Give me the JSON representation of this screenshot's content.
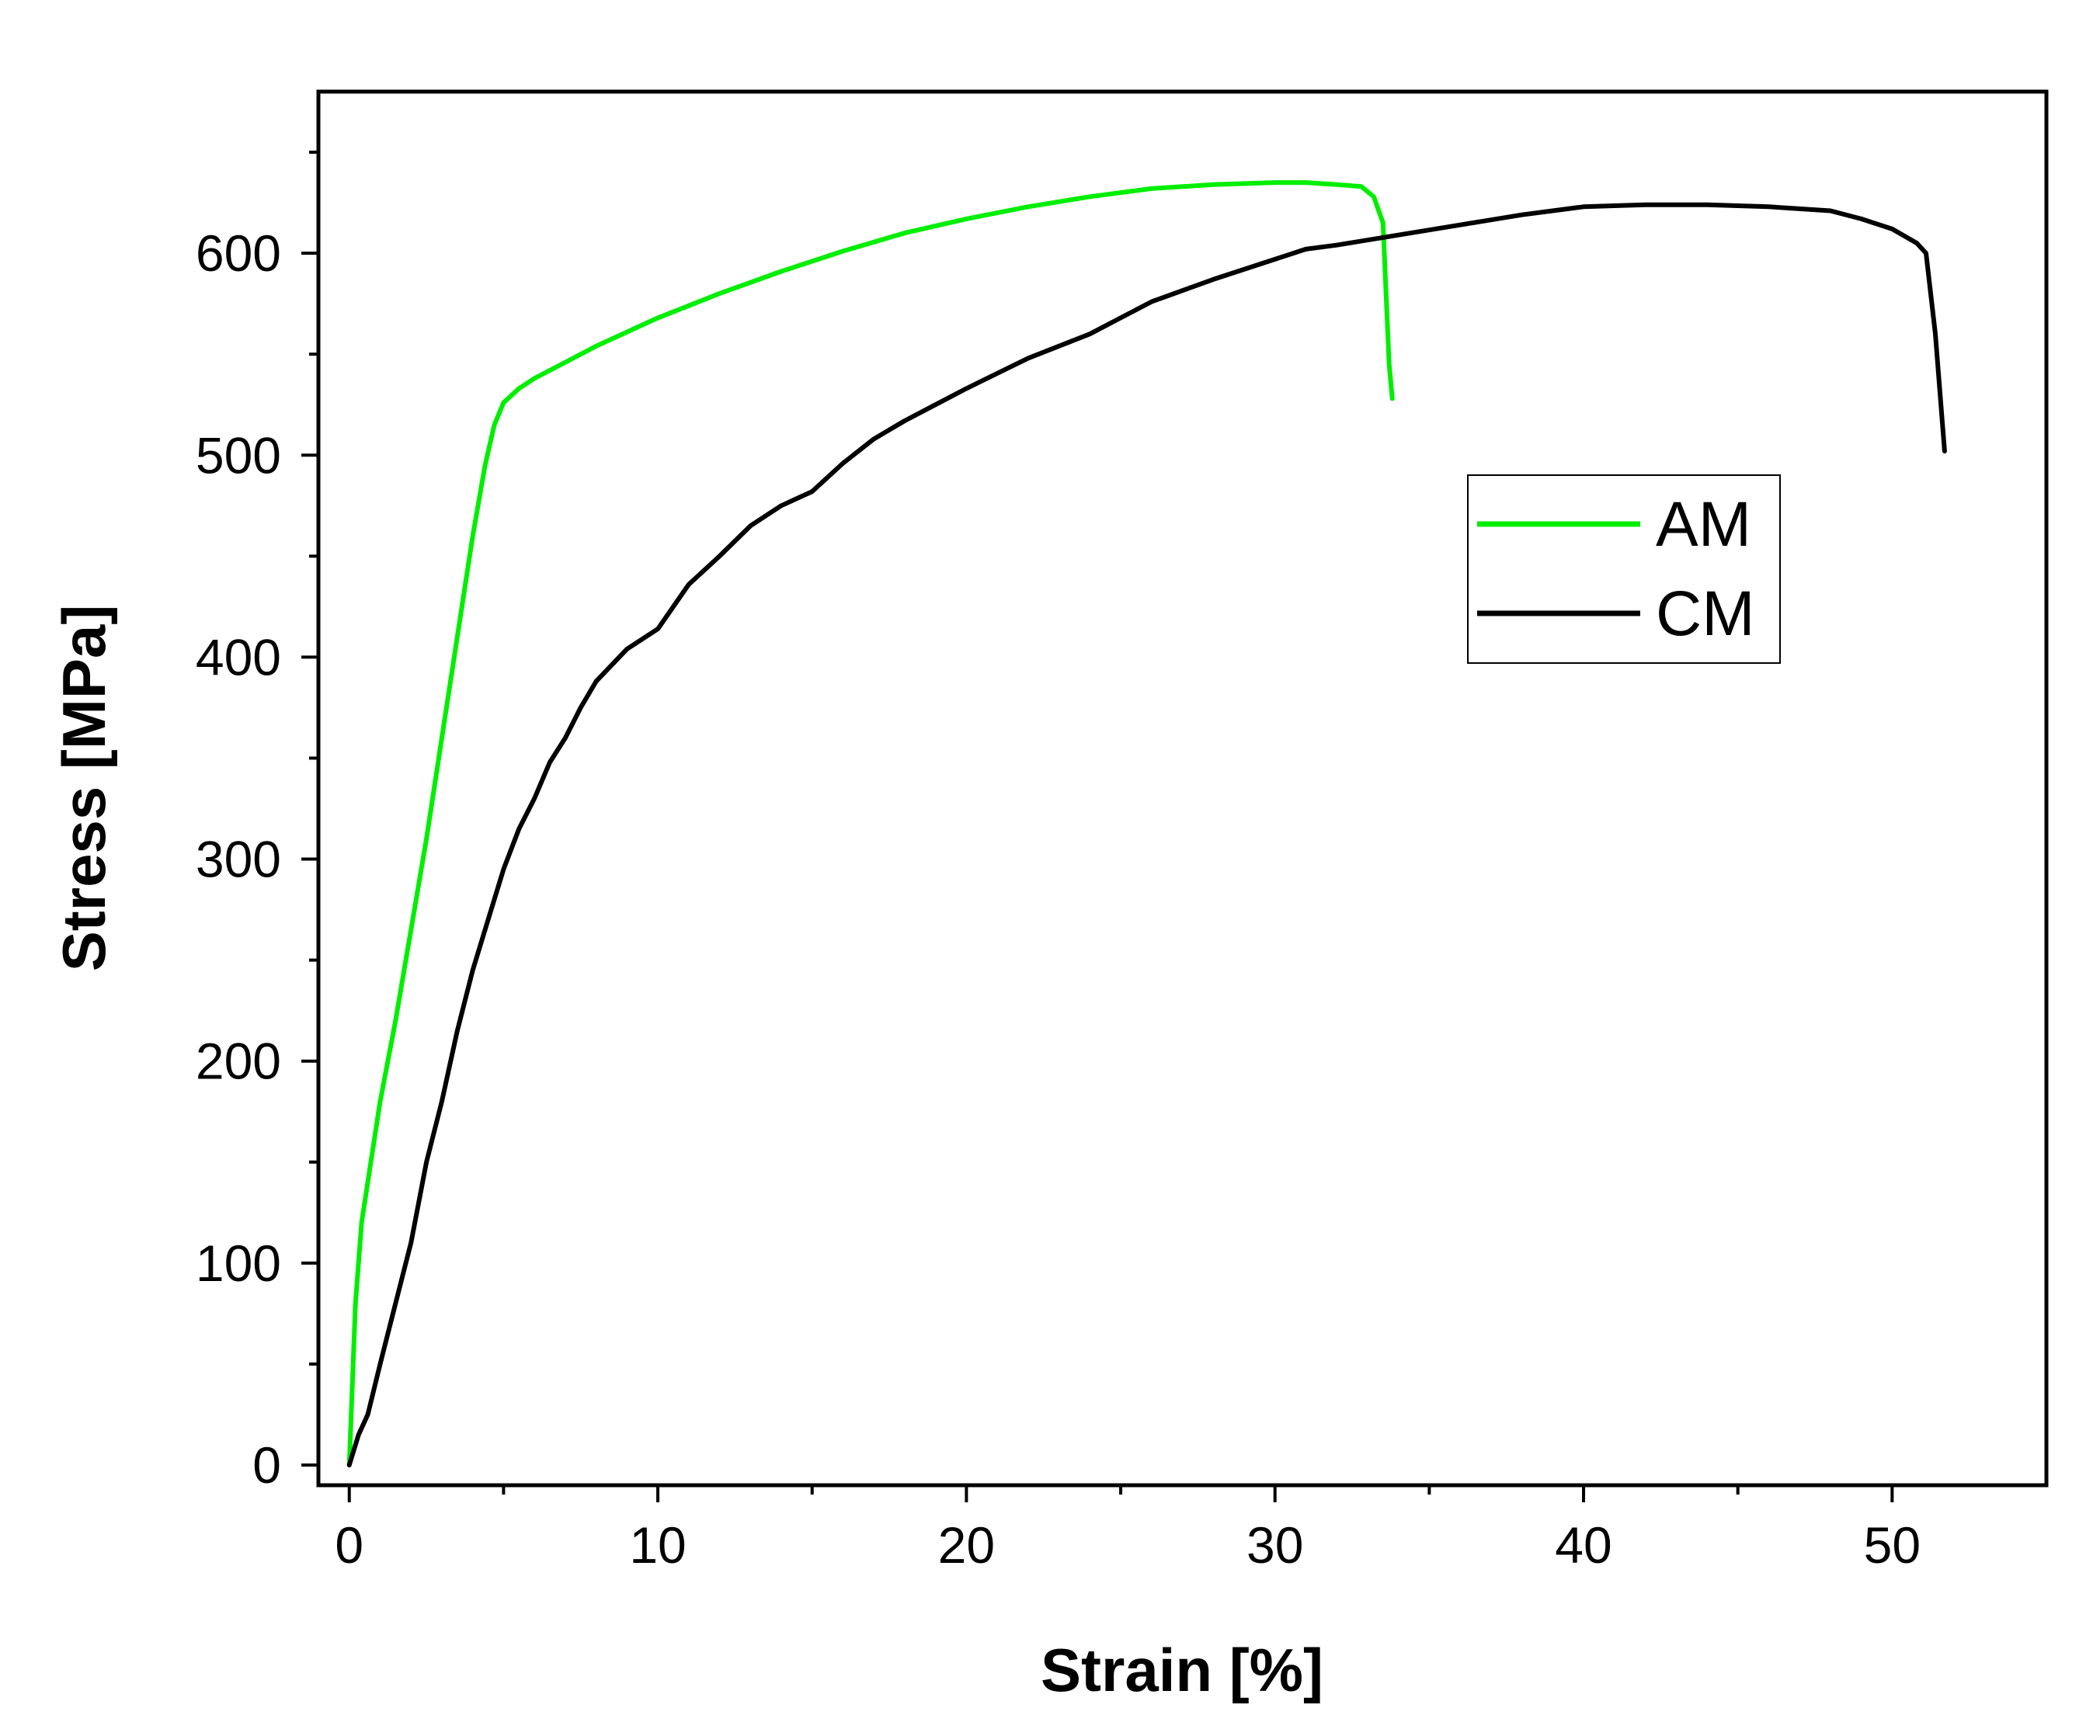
{
  "chart_data": {
    "type": "line",
    "title": "",
    "xlabel": "Strain [%]",
    "ylabel": "Stress [MPa]",
    "xlim": [
      -1,
      55
    ],
    "ylim": [
      -10,
      680
    ],
    "x_ticks": [
      0,
      10,
      20,
      30,
      40,
      50
    ],
    "x_tick_labels": [
      "0",
      "10",
      "20",
      "30",
      "40",
      "50"
    ],
    "y_ticks": [
      0,
      100,
      200,
      300,
      400,
      500,
      600
    ],
    "y_tick_labels": [
      "0",
      "100",
      "200",
      "300",
      "400",
      "500",
      "600"
    ],
    "grid": false,
    "legend_position": "top-right",
    "series": [
      {
        "name": "AM",
        "color": "#00ee00",
        "points": [
          [
            0,
            0
          ],
          [
            0.1,
            40
          ],
          [
            0.2,
            80
          ],
          [
            0.4,
            120
          ],
          [
            0.7,
            150
          ],
          [
            1.0,
            180
          ],
          [
            1.5,
            220
          ],
          [
            2.0,
            265
          ],
          [
            2.5,
            310
          ],
          [
            3.0,
            360
          ],
          [
            3.5,
            410
          ],
          [
            4.0,
            460
          ],
          [
            4.4,
            495
          ],
          [
            4.7,
            515
          ],
          [
            5.0,
            526
          ],
          [
            5.5,
            533
          ],
          [
            6,
            538
          ],
          [
            7,
            546
          ],
          [
            8,
            554
          ],
          [
            9,
            561
          ],
          [
            10,
            568
          ],
          [
            12,
            580
          ],
          [
            14,
            591
          ],
          [
            16,
            601
          ],
          [
            18,
            610
          ],
          [
            20,
            617
          ],
          [
            22,
            623
          ],
          [
            24,
            628
          ],
          [
            26,
            632
          ],
          [
            28,
            634
          ],
          [
            30,
            635
          ],
          [
            31,
            635
          ],
          [
            32,
            634
          ],
          [
            32.8,
            633
          ],
          [
            33.2,
            628
          ],
          [
            33.5,
            615
          ],
          [
            33.6,
            580
          ],
          [
            33.7,
            545
          ],
          [
            33.8,
            528
          ]
        ]
      },
      {
        "name": "CM",
        "color": "#000000",
        "points": [
          [
            0,
            0
          ],
          [
            0.3,
            15
          ],
          [
            0.6,
            25
          ],
          [
            1.0,
            50
          ],
          [
            1.5,
            80
          ],
          [
            2.0,
            110
          ],
          [
            2.5,
            150
          ],
          [
            3.0,
            180
          ],
          [
            3.5,
            215
          ],
          [
            4.0,
            245
          ],
          [
            4.5,
            270
          ],
          [
            5.0,
            295
          ],
          [
            5.5,
            315
          ],
          [
            6.0,
            330
          ],
          [
            6.5,
            348
          ],
          [
            7.0,
            360
          ],
          [
            7.5,
            375
          ],
          [
            8.0,
            388
          ],
          [
            9.0,
            404
          ],
          [
            10.0,
            414
          ],
          [
            11.0,
            436
          ],
          [
            12.0,
            450
          ],
          [
            13.0,
            465
          ],
          [
            14.0,
            475
          ],
          [
            15.0,
            482
          ],
          [
            16.0,
            496
          ],
          [
            17.0,
            508
          ],
          [
            18.0,
            517
          ],
          [
            19.0,
            525
          ],
          [
            20.0,
            533
          ],
          [
            22.0,
            548
          ],
          [
            24.0,
            560
          ],
          [
            25.0,
            568
          ],
          [
            26.0,
            576
          ],
          [
            28.0,
            587
          ],
          [
            30.0,
            597
          ],
          [
            31.0,
            602
          ],
          [
            32.0,
            604
          ],
          [
            34.0,
            609
          ],
          [
            36.0,
            614
          ],
          [
            38.0,
            619
          ],
          [
            40.0,
            623
          ],
          [
            42.0,
            624
          ],
          [
            44.0,
            624
          ],
          [
            46.0,
            623
          ],
          [
            48.0,
            621
          ],
          [
            49.0,
            617
          ],
          [
            50.0,
            612
          ],
          [
            50.8,
            605
          ],
          [
            51.1,
            600
          ],
          [
            51.4,
            560
          ],
          [
            51.7,
            502
          ]
        ]
      }
    ]
  }
}
